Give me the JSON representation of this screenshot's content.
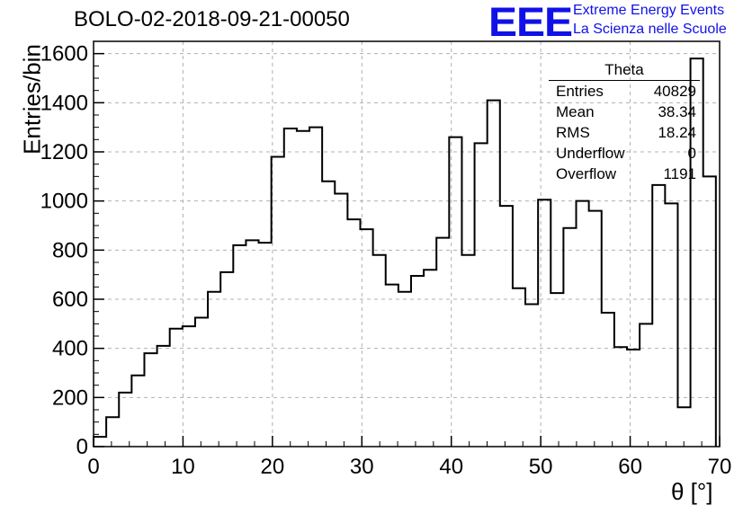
{
  "title": "BOLO-02-2018-09-21-00050",
  "logo": {
    "mark": "EEE",
    "line1": "Extreme Energy Events",
    "line2": "La Scienza nelle Scuole",
    "color": "#1010e8"
  },
  "stats_box": {
    "title": "Theta",
    "rows": [
      {
        "label": "Entries",
        "value": "40829"
      },
      {
        "label": "Mean",
        "value": "38.34"
      },
      {
        "label": "RMS",
        "value": "18.24"
      },
      {
        "label": "Underflow",
        "value": "0"
      },
      {
        "label": "Overflow",
        "value": "1191"
      }
    ]
  },
  "chart_data": {
    "type": "histogram",
    "title": "BOLO-02-2018-09-21-00050",
    "xlabel": "θ [°]",
    "ylabel": "Entries/bin",
    "xlim": [
      0,
      70
    ],
    "ylim": [
      0,
      1650
    ],
    "x_ticks": [
      0,
      10,
      20,
      30,
      40,
      50,
      60,
      70
    ],
    "y_ticks": [
      0,
      200,
      400,
      600,
      800,
      1000,
      1200,
      1400,
      1600
    ],
    "grid": true,
    "bin_width": 1.42,
    "bin_edges_start": 0,
    "values": [
      40,
      120,
      220,
      290,
      380,
      410,
      480,
      490,
      525,
      630,
      710,
      820,
      840,
      830,
      1180,
      1295,
      1285,
      1300,
      1080,
      1030,
      925,
      885,
      780,
      660,
      630,
      695,
      720,
      850,
      1260,
      780,
      1235,
      1410,
      980,
      645,
      580,
      1005,
      625,
      890,
      1000,
      960,
      545,
      405,
      395,
      500,
      1065,
      990,
      160,
      1580,
      1100
    ]
  }
}
